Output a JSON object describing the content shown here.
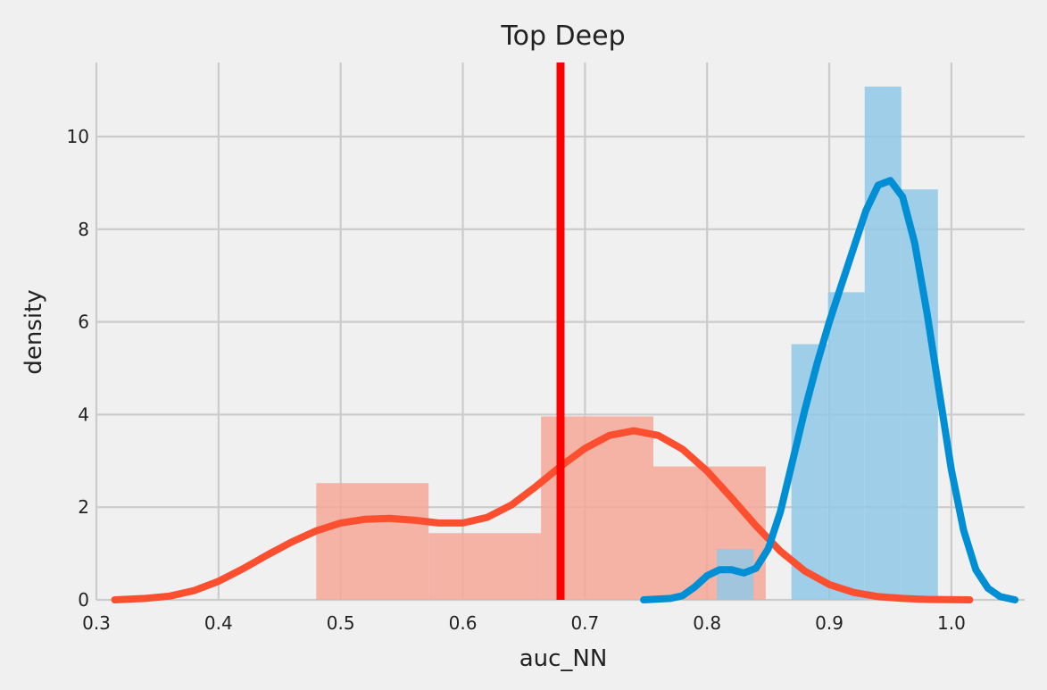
{
  "chart_data": {
    "type": "histogram+kde",
    "title": "Top Deep",
    "xlabel": "auc_NN",
    "ylabel": "density",
    "xlim": [
      0.3,
      1.06
    ],
    "ylim": [
      0,
      11.6
    ],
    "xticks": [
      "0.3",
      "0.4",
      "0.5",
      "0.6",
      "0.7",
      "0.8",
      "0.9",
      "1.0"
    ],
    "yticks": [
      "0",
      "2",
      "4",
      "6",
      "8",
      "10"
    ],
    "grid": true,
    "vline": {
      "x": 0.68,
      "color": "#ff0000"
    },
    "series": [
      {
        "color": "#fc4f30",
        "hist_color": "#f4a898",
        "hist": [
          {
            "x0": 0.48,
            "x1": 0.572,
            "density": 2.52
          },
          {
            "x0": 0.572,
            "x1": 0.664,
            "density": 1.44
          },
          {
            "x0": 0.664,
            "x1": 0.756,
            "density": 3.96
          },
          {
            "x0": 0.756,
            "x1": 0.848,
            "density": 2.88
          }
        ],
        "kde": [
          [
            0.315,
            0.0
          ],
          [
            0.34,
            0.03
          ],
          [
            0.36,
            0.08
          ],
          [
            0.38,
            0.2
          ],
          [
            0.4,
            0.4
          ],
          [
            0.42,
            0.67
          ],
          [
            0.44,
            0.97
          ],
          [
            0.46,
            1.25
          ],
          [
            0.48,
            1.49
          ],
          [
            0.5,
            1.66
          ],
          [
            0.52,
            1.74
          ],
          [
            0.54,
            1.76
          ],
          [
            0.56,
            1.72
          ],
          [
            0.58,
            1.66
          ],
          [
            0.6,
            1.66
          ],
          [
            0.62,
            1.78
          ],
          [
            0.64,
            2.05
          ],
          [
            0.66,
            2.45
          ],
          [
            0.68,
            2.88
          ],
          [
            0.7,
            3.27
          ],
          [
            0.72,
            3.55
          ],
          [
            0.74,
            3.65
          ],
          [
            0.76,
            3.55
          ],
          [
            0.78,
            3.25
          ],
          [
            0.8,
            2.78
          ],
          [
            0.82,
            2.2
          ],
          [
            0.84,
            1.6
          ],
          [
            0.86,
            1.05
          ],
          [
            0.88,
            0.62
          ],
          [
            0.9,
            0.33
          ],
          [
            0.92,
            0.16
          ],
          [
            0.94,
            0.07
          ],
          [
            0.96,
            0.03
          ],
          [
            0.98,
            0.01
          ],
          [
            1.015,
            0.0
          ]
        ]
      },
      {
        "color": "#008fd5",
        "hist_color": "#90c8e6",
        "hist": [
          {
            "x0": 0.808,
            "x1": 0.838,
            "density": 1.1
          },
          {
            "x0": 0.869,
            "x1": 0.899,
            "density": 5.52
          },
          {
            "x0": 0.899,
            "x1": 0.929,
            "density": 6.64
          },
          {
            "x0": 0.929,
            "x1": 0.959,
            "density": 11.08
          },
          {
            "x0": 0.959,
            "x1": 0.989,
            "density": 8.86
          }
        ],
        "kde": [
          [
            0.748,
            0.0
          ],
          [
            0.77,
            0.03
          ],
          [
            0.78,
            0.09
          ],
          [
            0.79,
            0.28
          ],
          [
            0.8,
            0.52
          ],
          [
            0.81,
            0.65
          ],
          [
            0.82,
            0.65
          ],
          [
            0.83,
            0.58
          ],
          [
            0.84,
            0.68
          ],
          [
            0.85,
            1.1
          ],
          [
            0.86,
            1.9
          ],
          [
            0.87,
            3.0
          ],
          [
            0.88,
            4.1
          ],
          [
            0.89,
            5.1
          ],
          [
            0.9,
            6.0
          ],
          [
            0.91,
            6.8
          ],
          [
            0.92,
            7.6
          ],
          [
            0.93,
            8.4
          ],
          [
            0.94,
            8.95
          ],
          [
            0.95,
            9.05
          ],
          [
            0.96,
            8.7
          ],
          [
            0.97,
            7.7
          ],
          [
            0.98,
            6.2
          ],
          [
            0.99,
            4.5
          ],
          [
            1.0,
            2.8
          ],
          [
            1.01,
            1.5
          ],
          [
            1.02,
            0.65
          ],
          [
            1.03,
            0.25
          ],
          [
            1.04,
            0.07
          ],
          [
            1.052,
            0.0
          ]
        ]
      }
    ]
  }
}
